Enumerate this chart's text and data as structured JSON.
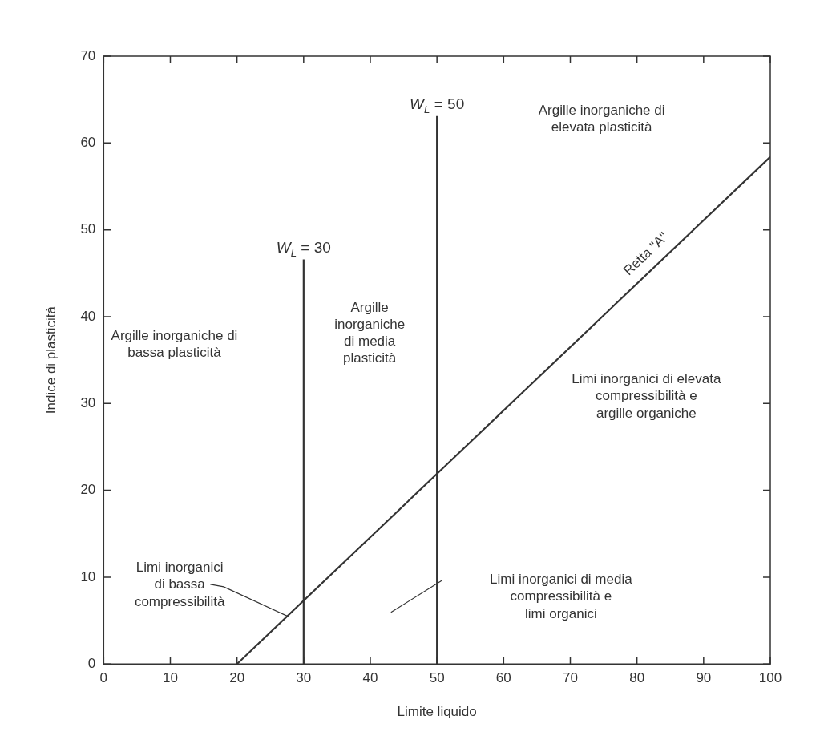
{
  "chart_data": {
    "type": "line",
    "xlabel": "Limite liquido",
    "ylabel": "Indice di plasticità",
    "xlim": [
      0,
      100
    ],
    "xticks": [
      0,
      10,
      20,
      30,
      40,
      50,
      60,
      70,
      80,
      90,
      100
    ],
    "ylim": [
      0,
      70
    ],
    "yticks": [
      0,
      10,
      20,
      30,
      40,
      50,
      60,
      70
    ],
    "legend": false,
    "marker": "none",
    "line_style": "solid",
    "series": [
      {
        "color": "#333333",
        "x": [
          20,
          100
        ],
        "values": [
          0,
          58.4
        ]
      }
    ],
    "ref_lines": [
      {
        "axis": "x",
        "value": 30,
        "label": "W$_{L}$ = 30",
        "color": "#333333"
      },
      {
        "axis": "x",
        "value": 50,
        "label": "W$_{L}$ = 50",
        "color": "#333333"
      }
    ],
    "annotations": [
      "Retta \"A\"",
      "Argille inorganiche di\nelevata plasticità",
      "Argille inorganiche di\nbassa plasticità",
      "Argille\ninorganiche\ndi media\nplasticità",
      "Limi inorganici di elevata\ncompressibilità e\nargille organiche",
      {
        "text": "Limi inorganici\ndi bassa\ncompressibilità",
        "x": 27.6,
        "y": 5.5
      },
      "Limi inorganici di media\ncompressibilità e\nlimi organici"
    ]
  }
}
